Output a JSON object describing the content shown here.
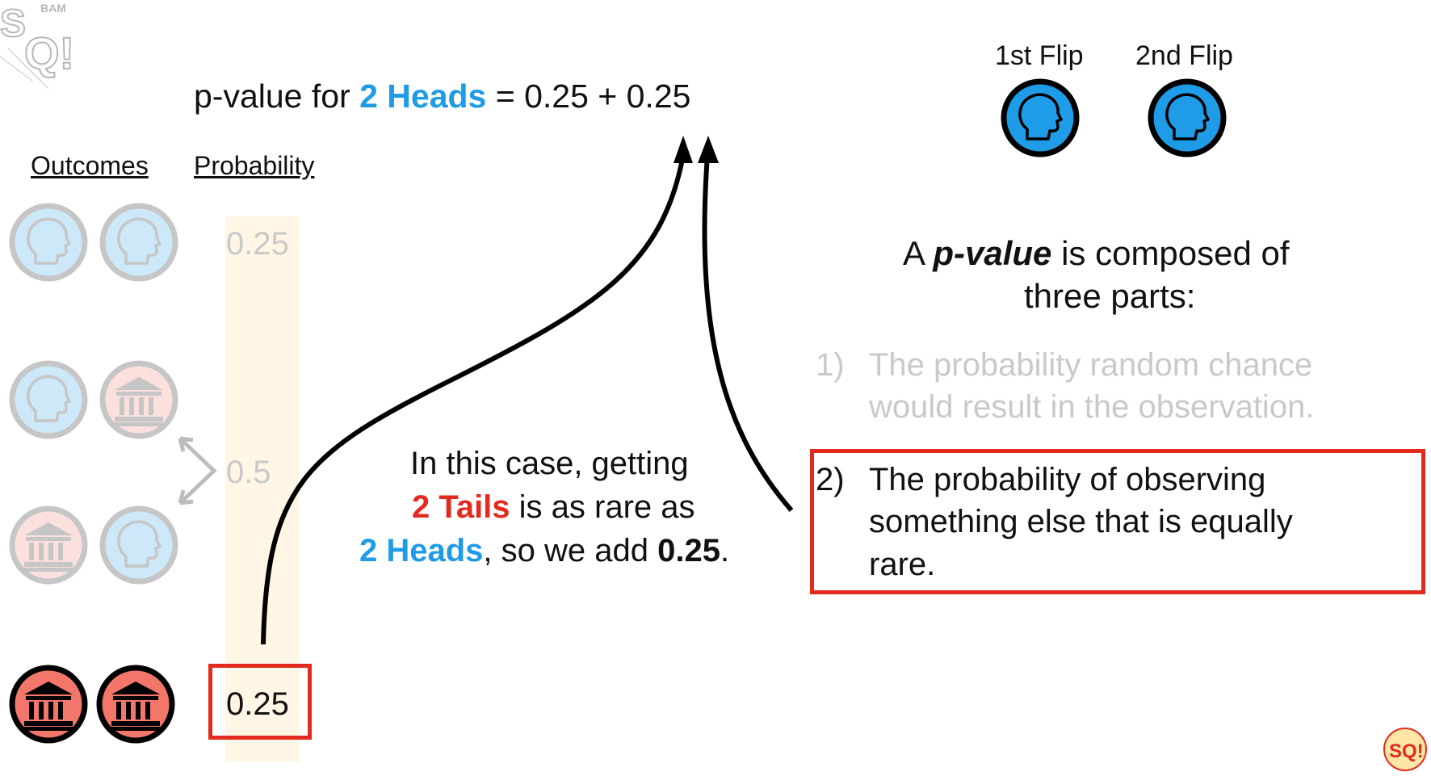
{
  "formula": {
    "prefix": "p-value for ",
    "highlight": "2 Heads",
    "suffix": " = 0.25 + 0.25",
    "highlight_color": "#1e9ce8"
  },
  "headers": {
    "outcomes": "Outcomes",
    "probability": "Probability"
  },
  "flips": {
    "first": "1st Flip",
    "second": "2nd Flip"
  },
  "rows": [
    {
      "outcome": [
        "heads",
        "heads"
      ],
      "probability": "0.25",
      "faded": true
    },
    {
      "outcome": [
        "heads",
        "tails"
      ],
      "probability": "",
      "faded": true
    },
    {
      "outcome": [
        "tails",
        "heads"
      ],
      "probability": "",
      "faded": true
    },
    {
      "outcome": [
        "tails",
        "tails"
      ],
      "probability": "0.25",
      "faded": false
    }
  ],
  "merged_probability": "0.5",
  "explanation": {
    "line1": "In this case, getting",
    "line2_red": "2 Tails",
    "line2_rest": " is as rare as",
    "line3_blue": "2 Heads",
    "line3_rest": ", so we add ",
    "line3_bold": "0.25",
    "line3_end": "."
  },
  "definition": {
    "line1_a": "A ",
    "line1_b": "p-value",
    "line1_c": " is composed of",
    "line2": "three parts:"
  },
  "parts": [
    {
      "num": "1)",
      "line1": "The probability random chance",
      "line2": "would result in the observation.",
      "line3": "",
      "faded": true
    },
    {
      "num": "2)",
      "line1": "The probability of observing",
      "line2": "something else that is equally",
      "line3": "rare.",
      "faded": false
    }
  ],
  "colors": {
    "heads": "#1e9ce8",
    "tails": "#f2776a",
    "highlight_box": "#e22b1e",
    "column_bg": "#fff6e6"
  },
  "icons": {
    "heads": "head-silhouette-icon",
    "tails": "building-icon",
    "logo": "statquest-logo"
  }
}
